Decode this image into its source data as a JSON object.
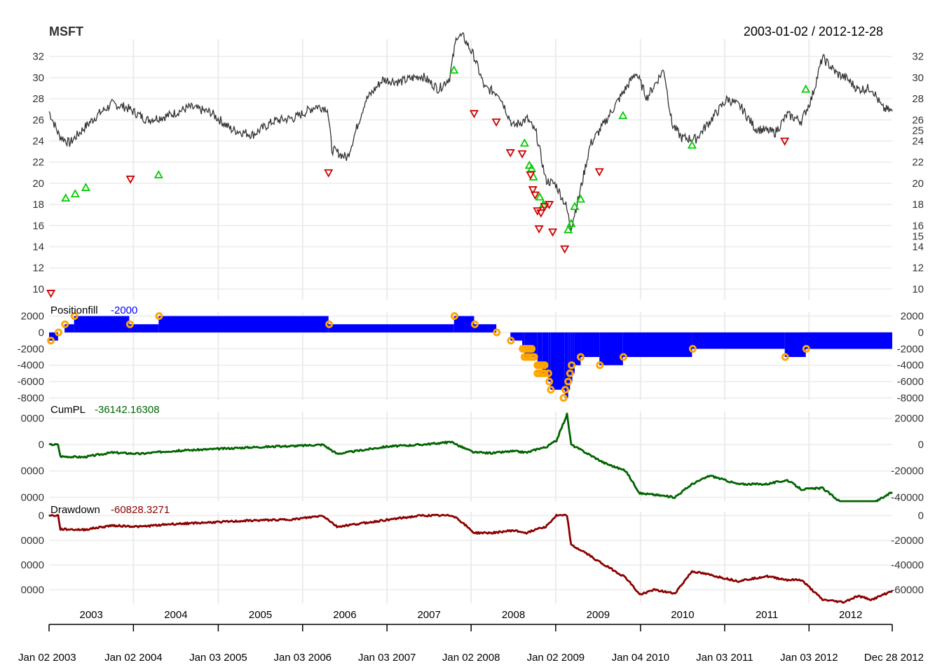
{
  "chart_data": {
    "type": "line",
    "symbol": "MSFT",
    "date_range": "2003-01-02 / 2012-12-28",
    "x_start": "2003-01-02",
    "x_end": "2012-12-28",
    "year_labels": [
      "2003",
      "2004",
      "2005",
      "2006",
      "2007",
      "2008",
      "2009",
      "2010",
      "2011",
      "2012"
    ],
    "date_labels": [
      "Jan 02 2003",
      "Jan 02 2004",
      "Jan 03 2005",
      "Jan 03 2006",
      "Jan 03 2007",
      "Jan 02 2008",
      "Jan 02 2009",
      "Jan 04 2010",
      "Jan 03 2011",
      "Jan 03 2012",
      "Dec 28 2012"
    ],
    "grid": true,
    "colors": {
      "price": "#333333",
      "buy": "#00cc00",
      "sell": "#cc0000",
      "position": "#0000ff",
      "fill_marker": "#ffa500",
      "cumpl": "#006400",
      "drawdown": "#8b0000",
      "grid": "#ebebeb"
    },
    "panels": [
      {
        "name": "price",
        "label": "MSFT",
        "ylim": [
          9,
          33.5
        ],
        "ticks_left": [
          "10",
          "12",
          "14",
          "16",
          "18",
          "20",
          "22",
          "24",
          "26",
          "28",
          "30",
          "32"
        ],
        "ticks_right": [
          "10",
          "12",
          "14",
          "15",
          "16",
          "18",
          "20",
          "22",
          "24",
          "25",
          "26",
          "28",
          "30",
          "32"
        ],
        "series": [
          {
            "x": [
              "2003-01-02",
              "2003-02-15",
              "2003-04-01",
              "2003-06-01",
              "2003-08-01",
              "2003-10-01",
              "2003-12-01",
              "2004-03-01",
              "2004-06-01",
              "2004-09-01",
              "2004-12-01",
              "2005-03-01",
              "2005-06-01",
              "2005-09-01",
              "2005-12-01",
              "2006-03-01",
              "2006-04-20",
              "2006-05-10",
              "2006-07-15",
              "2006-10-01",
              "2006-12-15",
              "2007-03-01",
              "2007-06-01",
              "2007-08-15",
              "2007-10-01",
              "2007-11-01",
              "2007-12-01",
              "2008-01-15",
              "2008-03-01",
              "2008-05-01",
              "2008-07-01",
              "2008-09-01",
              "2008-10-10",
              "2008-11-20",
              "2009-01-02",
              "2009-02-15",
              "2009-03-09",
              "2009-04-15",
              "2009-06-01",
              "2009-08-01",
              "2009-10-01",
              "2009-12-15",
              "2010-02-01",
              "2010-04-15",
              "2010-05-20",
              "2010-07-01",
              "2010-09-01",
              "2010-11-15",
              "2011-01-15",
              "2011-03-15",
              "2011-05-15",
              "2011-08-10",
              "2011-10-01",
              "2011-12-01",
              "2012-01-15",
              "2012-03-01",
              "2012-05-01",
              "2012-06-15",
              "2012-08-01",
              "2012-10-01",
              "2012-11-15",
              "2012-12-28"
            ],
            "y": [
              26.8,
              24.5,
              23.8,
              25.2,
              26.5,
              27.5,
              27.2,
              26.0,
              26.4,
              27.2,
              26.7,
              25.1,
              24.6,
              25.9,
              26.2,
              27.3,
              27.1,
              23.2,
              22.4,
              27.8,
              29.8,
              29.6,
              30.2,
              28.9,
              30.0,
              34.0,
              33.8,
              32.0,
              29.0,
              28.5,
              25.4,
              26.1,
              24.7,
              20.3,
              19.9,
              17.9,
              15.8,
              19.0,
              23.7,
              25.7,
              27.9,
              30.5,
              28.1,
              30.8,
              25.6,
              24.3,
              24.2,
              26.3,
              28.0,
              27.2,
              25.2,
              24.8,
              26.5,
              25.9,
              28.1,
              31.9,
              30.4,
              29.9,
              28.9,
              29.0,
              27.1,
              26.8
            ]
          }
        ],
        "buy_signals": [
          {
            "x": "2003-03-15",
            "y": 18.6
          },
          {
            "x": "2003-04-25",
            "y": 19.0
          },
          {
            "x": "2003-06-10",
            "y": 19.6
          },
          {
            "x": "2004-04-20",
            "y": 20.8
          },
          {
            "x": "2007-10-20",
            "y": 30.7
          },
          {
            "x": "2008-08-20",
            "y": 23.8
          },
          {
            "x": "2008-09-10",
            "y": 21.7
          },
          {
            "x": "2008-09-20",
            "y": 21.4
          },
          {
            "x": "2008-09-28",
            "y": 20.6
          },
          {
            "x": "2008-10-25",
            "y": 18.7
          },
          {
            "x": "2008-11-10",
            "y": 18.0
          },
          {
            "x": "2009-02-25",
            "y": 15.6
          },
          {
            "x": "2009-03-10",
            "y": 16.2
          },
          {
            "x": "2009-03-25",
            "y": 17.8
          },
          {
            "x": "2009-04-20",
            "y": 18.5
          },
          {
            "x": "2009-10-20",
            "y": 26.4
          },
          {
            "x": "2010-08-15",
            "y": 23.6
          },
          {
            "x": "2011-12-20",
            "y": 28.9
          }
        ],
        "sell_signals": [
          {
            "x": "2003-01-10",
            "y": 9.6
          },
          {
            "x": "2003-12-20",
            "y": 20.4
          },
          {
            "x": "2006-04-25",
            "y": 21.0
          },
          {
            "x": "2008-01-15",
            "y": 26.6
          },
          {
            "x": "2008-04-20",
            "y": 25.8
          },
          {
            "x": "2008-06-20",
            "y": 22.9
          },
          {
            "x": "2008-08-10",
            "y": 22.8
          },
          {
            "x": "2008-09-15",
            "y": 20.8
          },
          {
            "x": "2008-09-25",
            "y": 19.4
          },
          {
            "x": "2008-10-05",
            "y": 18.9
          },
          {
            "x": "2008-10-15",
            "y": 17.4
          },
          {
            "x": "2008-10-22",
            "y": 15.7
          },
          {
            "x": "2008-10-30",
            "y": 17.2
          },
          {
            "x": "2008-11-15",
            "y": 17.8
          },
          {
            "x": "2008-12-05",
            "y": 18.0
          },
          {
            "x": "2008-12-20",
            "y": 15.4
          },
          {
            "x": "2009-02-10",
            "y": 13.8
          },
          {
            "x": "2009-07-10",
            "y": 21.1
          },
          {
            "x": "2011-09-20",
            "y": 24.0
          }
        ]
      },
      {
        "name": "position",
        "label": "Positionfill",
        "value_label": "-2000",
        "ylim": [
          -8300,
          2300
        ],
        "ticks": [
          "2000",
          "0",
          "-2000",
          "-4000",
          "-6000",
          "-8000"
        ],
        "steps": [
          {
            "x": "2003-01-02",
            "y": -1000
          },
          {
            "x": "2003-02-10",
            "y": 0
          },
          {
            "x": "2003-03-10",
            "y": 1000
          },
          {
            "x": "2003-04-20",
            "y": 2000
          },
          {
            "x": "2003-12-15",
            "y": 1000
          },
          {
            "x": "2004-04-20",
            "y": 2000
          },
          {
            "x": "2006-04-25",
            "y": 1000
          },
          {
            "x": "2007-10-20",
            "y": 2000
          },
          {
            "x": "2008-01-15",
            "y": 1000
          },
          {
            "x": "2008-04-20",
            "y": 0
          },
          {
            "x": "2008-06-20",
            "y": -1000
          },
          {
            "x": "2008-08-10",
            "y": -2000
          },
          {
            "x": "2008-08-20",
            "y": -3000
          },
          {
            "x": "2008-10-15",
            "y": -4000
          },
          {
            "x": "2008-11-05",
            "y": -5000
          },
          {
            "x": "2008-12-01",
            "y": -6000
          },
          {
            "x": "2008-12-10",
            "y": -7000
          },
          {
            "x": "2009-02-10",
            "y": -8000
          },
          {
            "x": "2009-02-25",
            "y": -7000
          },
          {
            "x": "2009-03-05",
            "y": -6000
          },
          {
            "x": "2009-03-15",
            "y": -5000
          },
          {
            "x": "2009-03-25",
            "y": -4000
          },
          {
            "x": "2009-04-20",
            "y": -3000
          },
          {
            "x": "2009-07-10",
            "y": -4000
          },
          {
            "x": "2009-10-20",
            "y": -3000
          },
          {
            "x": "2010-08-15",
            "y": -2000
          },
          {
            "x": "2011-09-20",
            "y": -3000
          },
          {
            "x": "2011-12-20",
            "y": -2000
          },
          {
            "x": "2012-12-28",
            "y": -2000
          }
        ],
        "fill_markers": [
          {
            "x": "2003-01-10",
            "y": -1000
          },
          {
            "x": "2003-02-12",
            "y": 0
          },
          {
            "x": "2003-03-12",
            "y": 1000
          },
          {
            "x": "2003-04-22",
            "y": 2000
          },
          {
            "x": "2003-12-18",
            "y": 1000
          },
          {
            "x": "2004-04-22",
            "y": 2000
          },
          {
            "x": "2006-04-28",
            "y": 1000
          },
          {
            "x": "2007-10-22",
            "y": 2000
          },
          {
            "x": "2008-01-18",
            "y": 1000
          },
          {
            "x": "2008-04-22",
            "y": 0
          },
          {
            "x": "2008-06-22",
            "y": -1000
          },
          {
            "x": "2008-08-12",
            "y": -2000
          },
          {
            "x": "2008-08-22",
            "y": -2000
          },
          {
            "x": "2008-08-28",
            "y": -2000
          },
          {
            "x": "2008-09-05",
            "y": -2000
          },
          {
            "x": "2008-09-12",
            "y": -2000
          },
          {
            "x": "2008-09-20",
            "y": -2000
          },
          {
            "x": "2008-08-20",
            "y": -3000
          },
          {
            "x": "2008-08-30",
            "y": -3000
          },
          {
            "x": "2008-09-10",
            "y": -3000
          },
          {
            "x": "2008-09-22",
            "y": -3000
          },
          {
            "x": "2008-10-01",
            "y": -3000
          },
          {
            "x": "2008-10-15",
            "y": -4000
          },
          {
            "x": "2008-10-22",
            "y": -4000
          },
          {
            "x": "2008-10-30",
            "y": -4000
          },
          {
            "x": "2008-11-08",
            "y": -4000
          },
          {
            "x": "2008-11-15",
            "y": -4000
          },
          {
            "x": "2008-10-15",
            "y": -5000
          },
          {
            "x": "2008-10-25",
            "y": -5000
          },
          {
            "x": "2008-11-05",
            "y": -5000
          },
          {
            "x": "2008-11-15",
            "y": -5000
          },
          {
            "x": "2008-12-01",
            "y": -5000
          },
          {
            "x": "2008-12-05",
            "y": -6000
          },
          {
            "x": "2008-12-12",
            "y": -7000
          },
          {
            "x": "2009-02-05",
            "y": -8000
          },
          {
            "x": "2009-02-12",
            "y": -7000
          },
          {
            "x": "2009-02-25",
            "y": -6000
          },
          {
            "x": "2009-03-05",
            "y": -5000
          },
          {
            "x": "2009-03-12",
            "y": -4000
          },
          {
            "x": "2009-04-20",
            "y": -3000
          },
          {
            "x": "2009-07-12",
            "y": -4000
          },
          {
            "x": "2009-10-22",
            "y": -3000
          },
          {
            "x": "2010-08-18",
            "y": -2000
          },
          {
            "x": "2011-09-22",
            "y": -3000
          },
          {
            "x": "2011-12-22",
            "y": -2000
          }
        ]
      },
      {
        "name": "cumpl",
        "label": "CumPL",
        "value_label": "-36142.16308",
        "ylim": [
          -43000,
          24000
        ],
        "ticks_left": [
          "0000",
          "0",
          "0000",
          "0000"
        ],
        "ticks_right": [
          "20000",
          "0",
          "-20000",
          "-40000"
        ],
        "series": [
          {
            "x": [
              "2003-01-02",
              "2003-02-10",
              "2003-02-20",
              "2003-06-01",
              "2003-10-01",
              "2004-02-01",
              "2004-06-01",
              "2004-12-01",
              "2005-06-01",
              "2005-12-01",
              "2006-04-01",
              "2006-06-01",
              "2007-01-01",
              "2007-06-01",
              "2007-10-15",
              "2007-11-05",
              "2008-01-15",
              "2008-04-01",
              "2008-07-01",
              "2008-09-01",
              "2008-10-20",
              "2008-11-20",
              "2009-01-05",
              "2009-02-20",
              "2009-03-10",
              "2009-05-01",
              "2009-08-01",
              "2009-11-01",
              "2010-01-01",
              "2010-03-01",
              "2010-06-01",
              "2010-08-15",
              "2010-11-01",
              "2011-03-01",
              "2011-07-01",
              "2011-10-01",
              "2011-12-01",
              "2012-03-01",
              "2012-06-01",
              "2012-08-01",
              "2012-10-01",
              "2012-12-28"
            ],
            "y": [
              0,
              0,
              -9000,
              -9500,
              -6000,
              -7000,
              -5000,
              -3500,
              -2000,
              -1000,
              0,
              -7000,
              -1500,
              0,
              2000,
              -500,
              -6000,
              -6500,
              -5000,
              -6000,
              -3000,
              -2000,
              3000,
              23000,
              0,
              -5000,
              -14000,
              -20000,
              -37000,
              -38000,
              -40000,
              -30000,
              -23500,
              -30000,
              -30000,
              -27000,
              -34000,
              -33000,
              -45500,
              -44000,
              -45000,
              -36142
            ]
          }
        ]
      },
      {
        "name": "drawdown",
        "label": "Drawdown",
        "value_label": "-60828.3271",
        "ylim": [
          -71000,
          2000
        ],
        "ticks_left": [
          "0",
          "0000",
          "0000",
          "0000"
        ],
        "ticks_right": [
          "0",
          "-20000",
          "-40000",
          "-60000"
        ],
        "series": [
          {
            "x": [
              "2003-01-02",
              "2003-02-10",
              "2003-02-20",
              "2003-06-01",
              "2003-10-01",
              "2004-02-01",
              "2004-06-01",
              "2004-12-01",
              "2005-06-01",
              "2005-12-01",
              "2006-04-01",
              "2006-06-01",
              "2007-01-01",
              "2007-06-01",
              "2007-10-15",
              "2007-11-05",
              "2008-01-15",
              "2008-04-01",
              "2008-07-01",
              "2008-09-01",
              "2008-10-20",
              "2008-11-20",
              "2009-01-05",
              "2009-02-20",
              "2009-03-10",
              "2009-05-01",
              "2009-08-01",
              "2009-11-01",
              "2010-01-01",
              "2010-03-01",
              "2010-06-01",
              "2010-08-15",
              "2010-11-01",
              "2011-03-01",
              "2011-07-01",
              "2011-10-01",
              "2011-12-01",
              "2012-03-01",
              "2012-06-01",
              "2012-08-01",
              "2012-10-01",
              "2012-12-28"
            ],
            "y": [
              0,
              0,
              -11000,
              -11500,
              -8000,
              -9000,
              -7000,
              -5500,
              -4000,
              -3000,
              0,
              -9000,
              -3500,
              0,
              0,
              -2500,
              -14000,
              -14000,
              -12000,
              -14000,
              -10000,
              -9000,
              0,
              0,
              -24000,
              -29000,
              -40000,
              -50000,
              -64000,
              -60000,
              -63000,
              -45000,
              -48000,
              -53000,
              -49000,
              -52000,
              -52000,
              -68000,
              -70000,
              -65000,
              -68000,
              -60828
            ]
          }
        ]
      }
    ]
  }
}
